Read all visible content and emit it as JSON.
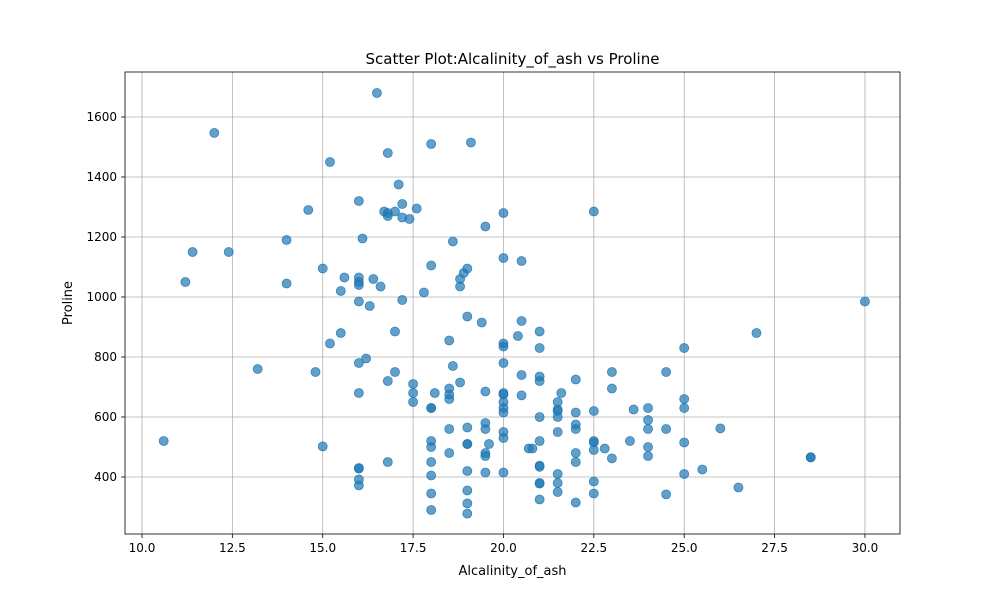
{
  "chart_data": {
    "type": "scatter",
    "title": "Scatter Plot:Alcalinity_of_ash vs Proline",
    "xlabel": "Alcalinity_of_ash",
    "ylabel": "Proline",
    "xlim": [
      9.53,
      30.97
    ],
    "ylim": [
      210,
      1750
    ],
    "xticks": [
      10.0,
      12.5,
      15.0,
      17.5,
      20.0,
      22.5,
      25.0,
      27.5,
      30.0
    ],
    "xtick_labels": [
      "10.0",
      "12.5",
      "15.0",
      "17.5",
      "20.0",
      "22.5",
      "25.0",
      "27.5",
      "30.0"
    ],
    "yticks": [
      400,
      600,
      800,
      1000,
      1200,
      1400,
      1600
    ],
    "ytick_labels": [
      "400",
      "600",
      "800",
      "1000",
      "1200",
      "1400",
      "1600"
    ],
    "grid": true,
    "marker_color": "#1f77b4",
    "marker_alpha": 0.7,
    "points": [
      [
        10.6,
        520
      ],
      [
        11.2,
        1050
      ],
      [
        11.4,
        1150
      ],
      [
        12.0,
        1547
      ],
      [
        12.4,
        1150
      ],
      [
        13.2,
        760
      ],
      [
        14.0,
        1190
      ],
      [
        14.0,
        1045
      ],
      [
        14.6,
        1290
      ],
      [
        14.8,
        750
      ],
      [
        15.0,
        1095
      ],
      [
        15.0,
        502
      ],
      [
        15.2,
        1450
      ],
      [
        15.2,
        845
      ],
      [
        15.5,
        880
      ],
      [
        15.5,
        1020
      ],
      [
        15.6,
        1065
      ],
      [
        16.0,
        1320
      ],
      [
        16.0,
        1065
      ],
      [
        16.0,
        1050
      ],
      [
        16.0,
        1040
      ],
      [
        16.0,
        985
      ],
      [
        16.0,
        780
      ],
      [
        16.0,
        680
      ],
      [
        16.0,
        430
      ],
      [
        16.0,
        428
      ],
      [
        16.0,
        392
      ],
      [
        16.0,
        372
      ],
      [
        16.1,
        1195
      ],
      [
        16.2,
        795
      ],
      [
        16.3,
        970
      ],
      [
        16.4,
        1060
      ],
      [
        16.5,
        1680
      ],
      [
        16.6,
        1035
      ],
      [
        16.7,
        1285
      ],
      [
        16.8,
        1480
      ],
      [
        16.8,
        1280
      ],
      [
        16.8,
        1270
      ],
      [
        16.8,
        720
      ],
      [
        16.8,
        450
      ],
      [
        17.0,
        1285
      ],
      [
        17.0,
        885
      ],
      [
        17.0,
        750
      ],
      [
        17.1,
        1375
      ],
      [
        17.2,
        1310
      ],
      [
        17.2,
        1265
      ],
      [
        17.2,
        990
      ],
      [
        17.4,
        1260
      ],
      [
        17.5,
        710
      ],
      [
        17.5,
        680
      ],
      [
        17.5,
        650
      ],
      [
        17.6,
        1295
      ],
      [
        17.8,
        1015
      ],
      [
        18.0,
        1510
      ],
      [
        18.0,
        1105
      ],
      [
        18.0,
        630
      ],
      [
        18.0,
        630
      ],
      [
        18.0,
        520
      ],
      [
        18.0,
        500
      ],
      [
        18.0,
        450
      ],
      [
        18.0,
        405
      ],
      [
        18.0,
        345
      ],
      [
        18.0,
        290
      ],
      [
        18.1,
        680
      ],
      [
        18.5,
        855
      ],
      [
        18.5,
        695
      ],
      [
        18.5,
        675
      ],
      [
        18.5,
        660
      ],
      [
        18.5,
        560
      ],
      [
        18.5,
        480
      ],
      [
        18.6,
        1185
      ],
      [
        18.6,
        770
      ],
      [
        18.8,
        1060
      ],
      [
        18.8,
        1035
      ],
      [
        18.8,
        715
      ],
      [
        18.9,
        1080
      ],
      [
        19.0,
        1095
      ],
      [
        19.0,
        935
      ],
      [
        19.0,
        565
      ],
      [
        19.0,
        510
      ],
      [
        19.0,
        510
      ],
      [
        19.0,
        420
      ],
      [
        19.0,
        355
      ],
      [
        19.0,
        312
      ],
      [
        19.0,
        278
      ],
      [
        19.1,
        1515
      ],
      [
        19.4,
        915
      ],
      [
        19.5,
        1235
      ],
      [
        19.5,
        685
      ],
      [
        19.5,
        580
      ],
      [
        19.5,
        560
      ],
      [
        19.5,
        480
      ],
      [
        19.5,
        470
      ],
      [
        19.5,
        415
      ],
      [
        19.6,
        510
      ],
      [
        20.0,
        1280
      ],
      [
        20.0,
        1130
      ],
      [
        20.0,
        845
      ],
      [
        20.0,
        835
      ],
      [
        20.0,
        780
      ],
      [
        20.0,
        680
      ],
      [
        20.0,
        675
      ],
      [
        20.0,
        650
      ],
      [
        20.0,
        630
      ],
      [
        20.0,
        615
      ],
      [
        20.0,
        550
      ],
      [
        20.0,
        530
      ],
      [
        20.0,
        415
      ],
      [
        20.4,
        870
      ],
      [
        20.5,
        1120
      ],
      [
        20.5,
        920
      ],
      [
        20.5,
        740
      ],
      [
        20.5,
        672
      ],
      [
        20.7,
        495
      ],
      [
        20.8,
        495
      ],
      [
        21.0,
        885
      ],
      [
        21.0,
        830
      ],
      [
        21.0,
        735
      ],
      [
        21.0,
        720
      ],
      [
        21.0,
        600
      ],
      [
        21.0,
        520
      ],
      [
        21.0,
        438
      ],
      [
        21.0,
        434
      ],
      [
        21.0,
        380
      ],
      [
        21.0,
        378
      ],
      [
        21.0,
        325
      ],
      [
        21.5,
        650
      ],
      [
        21.5,
        625
      ],
      [
        21.5,
        620
      ],
      [
        21.5,
        600
      ],
      [
        21.5,
        550
      ],
      [
        21.5,
        410
      ],
      [
        21.5,
        380
      ],
      [
        21.5,
        350
      ],
      [
        21.6,
        680
      ],
      [
        22.0,
        725
      ],
      [
        22.0,
        615
      ],
      [
        22.0,
        575
      ],
      [
        22.0,
        560
      ],
      [
        22.0,
        480
      ],
      [
        22.0,
        450
      ],
      [
        22.0,
        315
      ],
      [
        22.5,
        1285
      ],
      [
        22.5,
        620
      ],
      [
        22.5,
        520
      ],
      [
        22.5,
        515
      ],
      [
        22.5,
        490
      ],
      [
        22.5,
        385
      ],
      [
        22.5,
        345
      ],
      [
        22.8,
        495
      ],
      [
        23.0,
        750
      ],
      [
        23.0,
        695
      ],
      [
        23.0,
        462
      ],
      [
        23.5,
        520
      ],
      [
        23.6,
        625
      ],
      [
        24.0,
        630
      ],
      [
        24.0,
        590
      ],
      [
        24.0,
        560
      ],
      [
        24.0,
        500
      ],
      [
        24.0,
        470
      ],
      [
        24.5,
        750
      ],
      [
        24.5,
        560
      ],
      [
        24.5,
        342
      ],
      [
        25.0,
        830
      ],
      [
        25.0,
        660
      ],
      [
        25.0,
        630
      ],
      [
        25.0,
        515
      ],
      [
        25.0,
        410
      ],
      [
        25.5,
        425
      ],
      [
        26.0,
        562
      ],
      [
        26.5,
        365
      ],
      [
        27.0,
        880
      ],
      [
        28.5,
        466
      ],
      [
        28.5,
        465
      ],
      [
        30.0,
        985
      ]
    ]
  }
}
